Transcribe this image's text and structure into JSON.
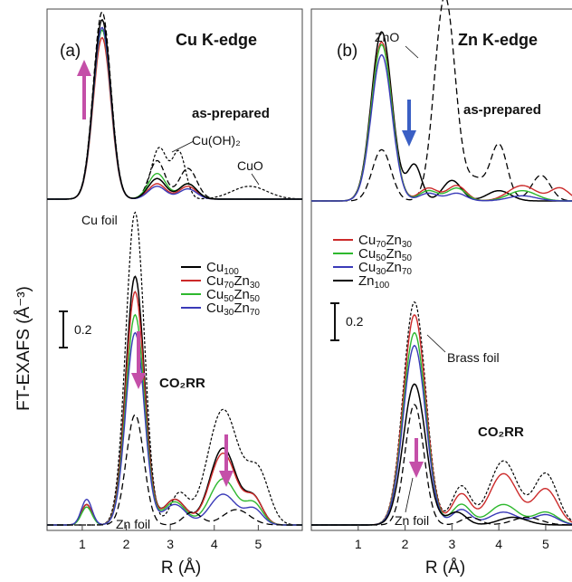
{
  "chart_data": [
    {
      "type": "line",
      "panel_label": "(a)",
      "edge_title": "Cu K-edge",
      "xlabel": "R (Å)",
      "ylabel": "FT-EXAFS (Å⁻³)",
      "xticks": [
        "1",
        "2",
        "3",
        "4",
        "5"
      ],
      "xlim": [
        0.2,
        6.0
      ],
      "scale_bar_label": "0.2",
      "sections": {
        "top": "as-prepared",
        "bottom": "CO₂RR"
      },
      "annotations": [
        "Cu(OH)₂",
        "CuO",
        "Cu foil",
        "Zn foil"
      ],
      "legend": [
        {
          "main": "Cu",
          "sub": "100",
          "color": "#000000"
        },
        {
          "main": "Cu",
          "sub": "70",
          "main2": "Zn",
          "sub2": "30",
          "color": "#cc2a2a"
        },
        {
          "main": "Cu",
          "sub": "50",
          "main2": "Zn",
          "sub2": "50",
          "color": "#2eb82e"
        },
        {
          "main": "Cu",
          "sub": "30",
          "main2": "Zn",
          "sub2": "70",
          "color": "#3a3ab8"
        }
      ],
      "peaks": {
        "as_prepared": {
          "Cu100": [
            1.45,
            0.7
          ],
          "Cu70Zn30": [
            1.45,
            0.63
          ],
          "Cu50Zn50": [
            1.45,
            0.66
          ],
          "Cu30Zn70": [
            1.45,
            0.67
          ],
          "Cu_foil_ref": [
            1.45,
            0.73
          ]
        },
        "co2rr": {
          "Cu_foil": [
            2.2,
            1.22
          ],
          "Cu100": [
            2.2,
            0.97
          ],
          "Cu70Zn30": [
            2.2,
            0.91
          ],
          "Cu50Zn50": [
            2.2,
            0.82
          ],
          "Cu30Zn70": [
            2.2,
            0.75
          ],
          "Zn_foil": [
            2.2,
            0.43
          ]
        }
      }
    },
    {
      "type": "line",
      "panel_label": "(b)",
      "edge_title": "Zn K-edge",
      "xlabel": "R (Å)",
      "xticks": [
        "1",
        "2",
        "3",
        "4",
        "5"
      ],
      "xlim": [
        0.0,
        5.6
      ],
      "scale_bar_label": "0.2",
      "sections": {
        "top": "as-prepared",
        "bottom": "CO₂RR"
      },
      "annotations": [
        "ZnO",
        "Brass foil",
        "Zn foil"
      ],
      "legend": [
        {
          "main": "Cu",
          "sub": "70",
          "main2": "Zn",
          "sub2": "30",
          "color": "#cc2a2a"
        },
        {
          "main": "Cu",
          "sub": "50",
          "main2": "Zn",
          "sub2": "50",
          "color": "#2eb82e"
        },
        {
          "main": "Cu",
          "sub": "30",
          "main2": "Zn",
          "sub2": "70",
          "color": "#3a3ab8"
        },
        {
          "main": "Zn",
          "sub": "100",
          "color": "#000000"
        }
      ],
      "peaks": {
        "as_prepared": {
          "Zn100": [
            1.5,
            0.66
          ],
          "Cu70Zn30": [
            1.5,
            0.62
          ],
          "Cu50Zn50": [
            1.5,
            0.61
          ],
          "Cu30Zn70": [
            1.5,
            0.57
          ],
          "ZnO": [
            2.85,
            0.8
          ]
        },
        "co2rr": {
          "Brass_foil": [
            2.2,
            0.87
          ],
          "Cu70Zn30": [
            2.2,
            0.82
          ],
          "Cu50Zn50": [
            2.2,
            0.75
          ],
          "Cu30Zn70": [
            2.2,
            0.7
          ],
          "Zn100": [
            2.2,
            0.55
          ],
          "Zn_foil": [
            2.2,
            0.47
          ]
        }
      }
    }
  ]
}
